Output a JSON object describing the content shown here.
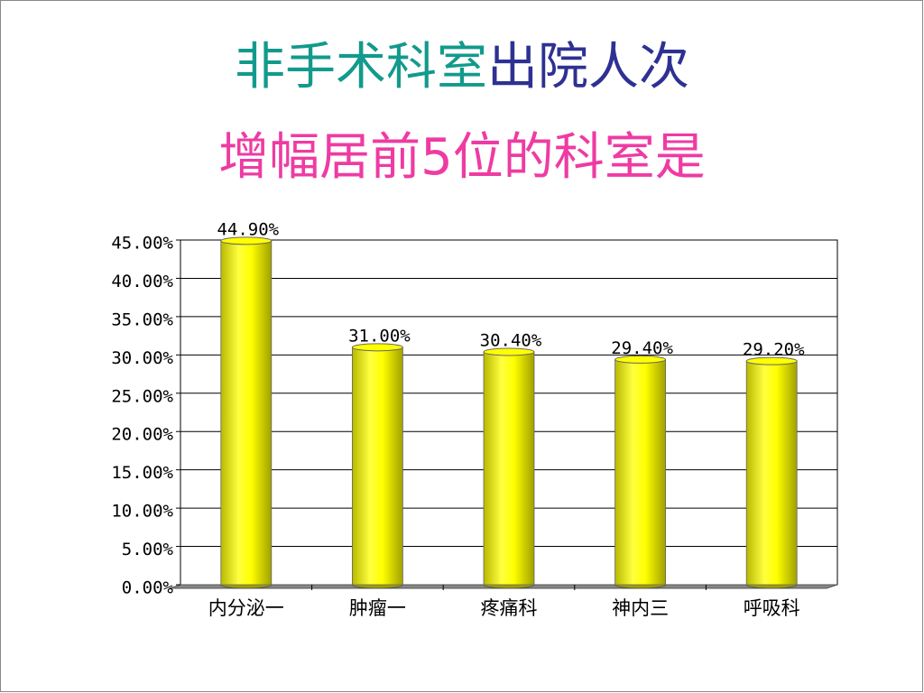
{
  "chart_data": {
    "type": "bar",
    "title": [
      "非手术科室",
      "出院人次"
    ],
    "title_colors": [
      "#129a8c",
      "#2e3192"
    ],
    "subtitle": "增幅居前5位的科室是",
    "subtitle_color": "#ee3ba3",
    "categories": [
      "内分泌一",
      "肿瘤一",
      "疼痛科",
      "神内三",
      "呼吸科"
    ],
    "values": [
      44.9,
      31.0,
      30.4,
      29.4,
      29.2
    ],
    "value_labels": [
      "44.90%",
      "31.00%",
      "30.40%",
      "29.40%",
      "29.20%"
    ],
    "color": "#ffff00",
    "ylim": [
      0,
      45
    ],
    "yticks": [
      {
        "value": 0,
        "label": "0.00%"
      },
      {
        "value": 5,
        "label": "5.00%"
      },
      {
        "value": 10,
        "label": "10.00%"
      },
      {
        "value": 15,
        "label": "15.00%"
      },
      {
        "value": 20,
        "label": "20.00%"
      },
      {
        "value": 25,
        "label": "25.00%"
      },
      {
        "value": 30,
        "label": "30.00%"
      },
      {
        "value": 35,
        "label": "35.00%"
      },
      {
        "value": 40,
        "label": "40.00%"
      },
      {
        "value": 45,
        "label": "45.00%"
      }
    ],
    "grid": true
  }
}
